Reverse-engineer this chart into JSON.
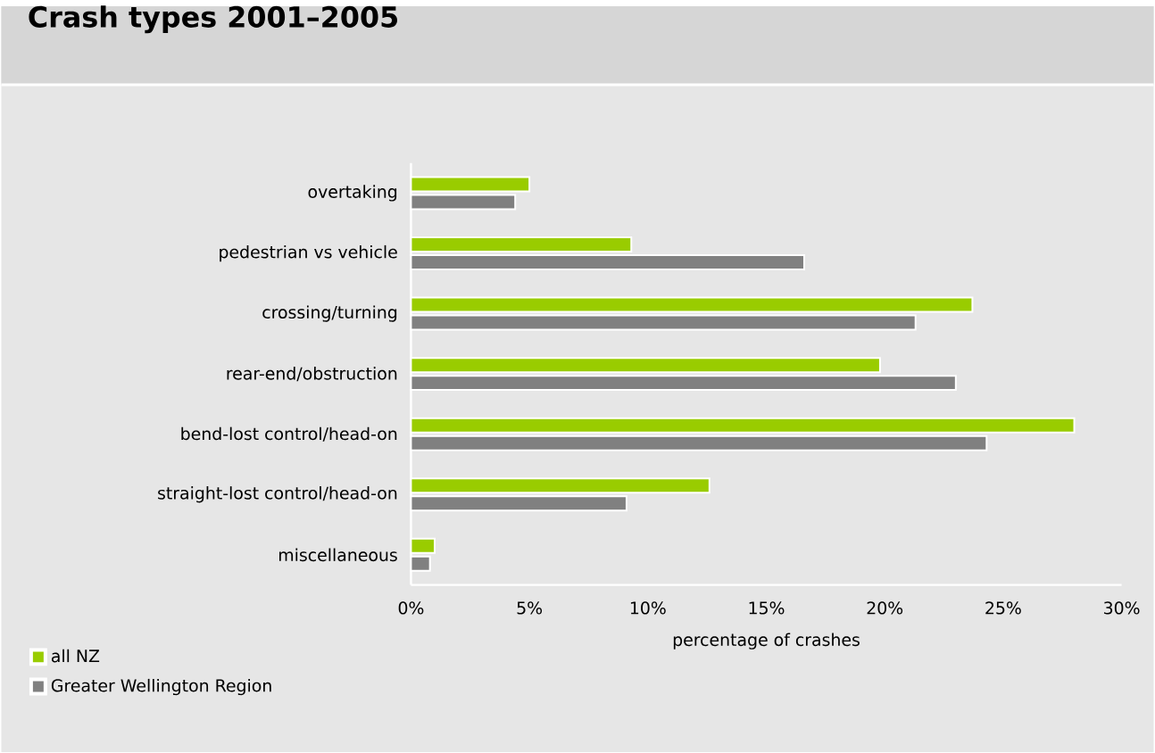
{
  "chart_data": {
    "type": "bar",
    "orientation": "horizontal",
    "title": "Crash types 2001–2005",
    "xlabel": "percentage of crashes",
    "categories": [
      "overtaking",
      "pedestrian vs vehicle",
      "crossing/turning",
      "rear-end/obstruction",
      "bend-lost control/head-on",
      "straight-lost control/head-on",
      "miscellaneous"
    ],
    "series": [
      {
        "name": "all NZ",
        "color": "#99cc00",
        "values": [
          5.0,
          9.3,
          23.7,
          19.8,
          28.0,
          12.6,
          1.0
        ]
      },
      {
        "name": "Greater Wellington Region",
        "color": "#808080",
        "values": [
          4.4,
          16.6,
          21.3,
          23.0,
          24.3,
          9.1,
          0.8
        ]
      }
    ],
    "xlim": [
      0,
      30
    ],
    "xticks": [
      {
        "value": 0,
        "label": "0%"
      },
      {
        "value": 5,
        "label": "5%"
      },
      {
        "value": 10,
        "label": "10%"
      },
      {
        "value": 15,
        "label": "15%"
      },
      {
        "value": 20,
        "label": "20%"
      },
      {
        "value": 25,
        "label": "25%"
      },
      {
        "value": 30,
        "label": "30%"
      }
    ],
    "grid": false,
    "legend": "bottom left"
  }
}
